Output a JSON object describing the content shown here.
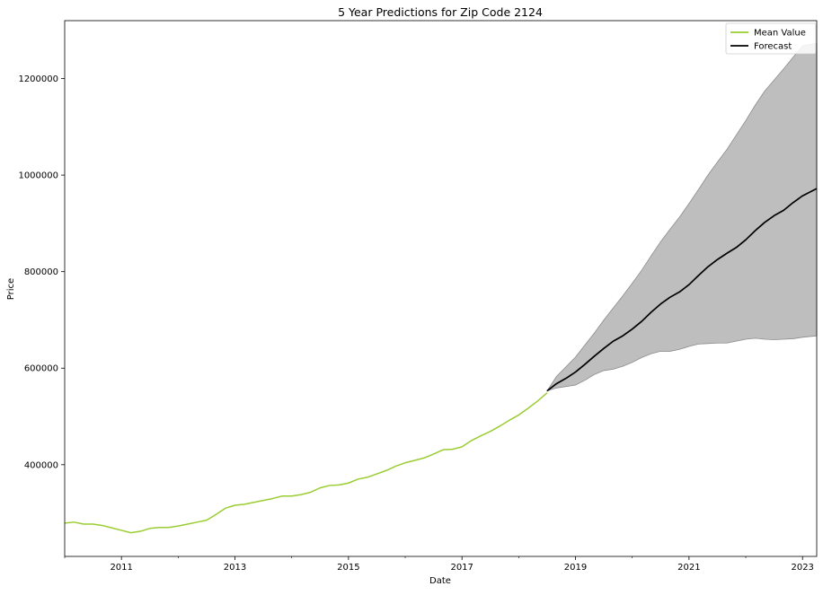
{
  "chart_data": {
    "type": "line",
    "title": "5 Year Predictions for Zip Code 2124",
    "xlabel": "Date",
    "ylabel": "Price",
    "x_range": [
      "2010-01",
      "2023-04"
    ],
    "ylim": [
      210000,
      1320000
    ],
    "x_ticks": [
      {
        "label": "2011",
        "date": "2011-01"
      },
      {
        "label": "2013",
        "date": "2013-01"
      },
      {
        "label": "2015",
        "date": "2015-01"
      },
      {
        "label": "2017",
        "date": "2017-01"
      },
      {
        "label": "2019",
        "date": "2019-01"
      },
      {
        "label": "2021",
        "date": "2021-01"
      },
      {
        "label": "2023",
        "date": "2023-01"
      }
    ],
    "y_ticks": [
      {
        "label": "400000",
        "value": 400000
      },
      {
        "label": "600000",
        "value": 600000
      },
      {
        "label": "800000",
        "value": 800000
      },
      {
        "label": "1000000",
        "value": 1000000
      },
      {
        "label": "1200000",
        "value": 1200000
      }
    ],
    "grid": false,
    "legend_position": "top-right",
    "colors": {
      "mean_value": "#9acd32",
      "forecast": "#000000",
      "confidence_band": "#bebebe"
    },
    "series": [
      {
        "name": "Mean Value",
        "key": "mean_value",
        "points": [
          [
            "2010-01",
            279000
          ],
          [
            "2010-03",
            281000
          ],
          [
            "2010-05",
            277000
          ],
          [
            "2010-07",
            277000
          ],
          [
            "2010-09",
            274000
          ],
          [
            "2010-11",
            269000
          ],
          [
            "2011-01",
            264000
          ],
          [
            "2011-03",
            259000
          ],
          [
            "2011-05",
            262000
          ],
          [
            "2011-07",
            268000
          ],
          [
            "2011-09",
            270000
          ],
          [
            "2011-11",
            270000
          ],
          [
            "2012-01",
            273000
          ],
          [
            "2012-03",
            277000
          ],
          [
            "2012-05",
            281000
          ],
          [
            "2012-07",
            285000
          ],
          [
            "2012-09",
            297000
          ],
          [
            "2012-11",
            310000
          ],
          [
            "2013-01",
            316000
          ],
          [
            "2013-03",
            318000
          ],
          [
            "2013-05",
            322000
          ],
          [
            "2013-07",
            326000
          ],
          [
            "2013-09",
            330000
          ],
          [
            "2013-11",
            335000
          ],
          [
            "2014-01",
            335000
          ],
          [
            "2014-03",
            338000
          ],
          [
            "2014-05",
            343000
          ],
          [
            "2014-07",
            352000
          ],
          [
            "2014-09",
            357000
          ],
          [
            "2014-11",
            358000
          ],
          [
            "2015-01",
            362000
          ],
          [
            "2015-03",
            370000
          ],
          [
            "2015-05",
            374000
          ],
          [
            "2015-07",
            381000
          ],
          [
            "2015-09",
            388000
          ],
          [
            "2015-11",
            397000
          ],
          [
            "2016-01",
            404000
          ],
          [
            "2016-03",
            409000
          ],
          [
            "2016-05",
            414000
          ],
          [
            "2016-07",
            422000
          ],
          [
            "2016-09",
            431000
          ],
          [
            "2016-11",
            432000
          ],
          [
            "2017-01",
            437000
          ],
          [
            "2017-03",
            450000
          ],
          [
            "2017-05",
            460000
          ],
          [
            "2017-07",
            469000
          ],
          [
            "2017-09",
            480000
          ],
          [
            "2017-11",
            492000
          ],
          [
            "2018-01",
            503000
          ],
          [
            "2018-03",
            517000
          ],
          [
            "2018-05",
            532000
          ],
          [
            "2018-07",
            549000
          ]
        ]
      },
      {
        "name": "Forecast",
        "key": "forecast",
        "points": [
          [
            "2018-07",
            553000
          ],
          [
            "2018-09",
            568000
          ],
          [
            "2018-11",
            579000
          ],
          [
            "2019-01",
            592000
          ],
          [
            "2019-03",
            608000
          ],
          [
            "2019-05",
            625000
          ],
          [
            "2019-07",
            641000
          ],
          [
            "2019-09",
            656000
          ],
          [
            "2019-11",
            667000
          ],
          [
            "2020-01",
            681000
          ],
          [
            "2020-03",
            697000
          ],
          [
            "2020-05",
            716000
          ],
          [
            "2020-07",
            733000
          ],
          [
            "2020-09",
            747000
          ],
          [
            "2020-11",
            758000
          ],
          [
            "2021-01",
            773000
          ],
          [
            "2021-03",
            792000
          ],
          [
            "2021-05",
            810000
          ],
          [
            "2021-07",
            825000
          ],
          [
            "2021-09",
            838000
          ],
          [
            "2021-11",
            850000
          ],
          [
            "2022-01",
            866000
          ],
          [
            "2022-03",
            885000
          ],
          [
            "2022-05",
            902000
          ],
          [
            "2022-07",
            916000
          ],
          [
            "2022-09",
            927000
          ],
          [
            "2022-11",
            943000
          ],
          [
            "2023-01",
            957000
          ],
          [
            "2023-04",
            972000
          ]
        ]
      }
    ],
    "confidence_band": {
      "x": [
        "2018-07",
        "2018-09",
        "2018-11",
        "2019-01",
        "2019-03",
        "2019-05",
        "2019-07",
        "2019-09",
        "2019-11",
        "2020-01",
        "2020-03",
        "2020-05",
        "2020-07",
        "2020-09",
        "2020-11",
        "2021-01",
        "2021-03",
        "2021-05",
        "2021-07",
        "2021-09",
        "2021-11",
        "2022-01",
        "2022-03",
        "2022-05",
        "2022-07",
        "2022-09",
        "2022-11",
        "2023-01",
        "2023-04"
      ],
      "upper": [
        553000,
        583000,
        603000,
        623000,
        648000,
        673000,
        700000,
        725000,
        750000,
        776000,
        803000,
        833000,
        862000,
        888000,
        913000,
        941000,
        970000,
        1000000,
        1027000,
        1053000,
        1083000,
        1113000,
        1145000,
        1174000,
        1197000,
        1220000,
        1244000,
        1268000,
        1273000
      ],
      "lower": [
        553000,
        559000,
        562000,
        565000,
        575000,
        587000,
        595000,
        598000,
        604000,
        612000,
        622000,
        630000,
        635000,
        635000,
        639000,
        645000,
        650000,
        651000,
        652000,
        652000,
        656000,
        660000,
        662000,
        660000,
        659000,
        660000,
        661000,
        664000,
        667000
      ]
    }
  }
}
